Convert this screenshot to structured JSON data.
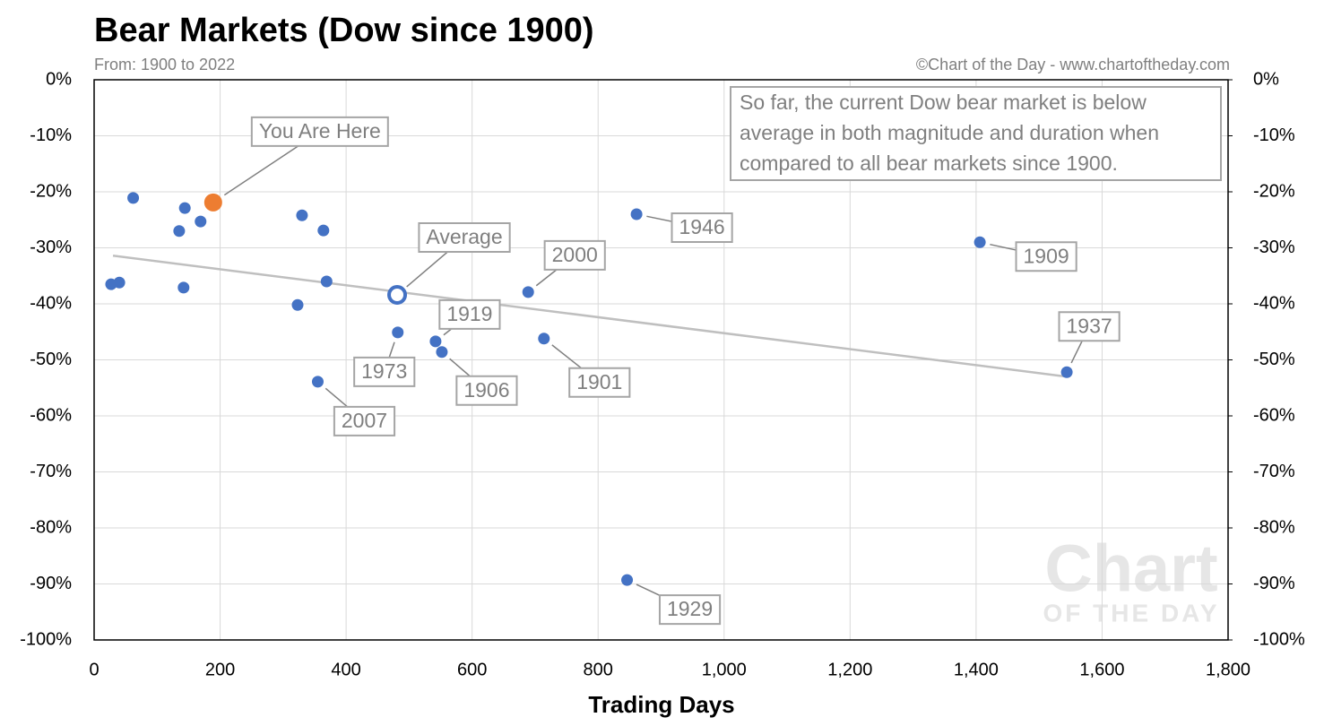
{
  "chart_data": {
    "type": "scatter",
    "title": "Bear Markets (Dow since 1900)",
    "subtitle": "From: 1900 to 2022",
    "source": "©Chart of the Day - www.chartoftheday.com",
    "note": [
      "So far, the current Dow bear market is below",
      "average in both magnitude and duration when",
      "compared to all bear markets since 1900."
    ],
    "watermark": [
      "Chart",
      "OF THE DAY"
    ],
    "x_label": "Trading Days",
    "xlim": [
      0,
      1800
    ],
    "xticks": [
      0,
      200,
      400,
      600,
      800,
      {
        "value": 1000,
        "label": "1,000"
      },
      {
        "value": 1200,
        "label": "1,200"
      },
      {
        "value": 1400,
        "label": "1,400"
      },
      {
        "value": 1600,
        "label": "1,600"
      },
      {
        "value": 1800,
        "label": "1,800"
      }
    ],
    "ylim": [
      -100,
      0
    ],
    "yticks": [
      {
        "value": 0,
        "label": "0%"
      },
      {
        "value": -10,
        "label": "-10%"
      },
      {
        "value": -20,
        "label": "-20%"
      },
      {
        "value": -30,
        "label": "-30%"
      },
      {
        "value": -40,
        "label": "-40%"
      },
      {
        "value": -50,
        "label": "-50%"
      },
      {
        "value": -60,
        "label": "-60%"
      },
      {
        "value": -70,
        "label": "-70%"
      },
      {
        "value": -80,
        "label": "-80%"
      },
      {
        "value": -90,
        "label": "-90%"
      },
      {
        "value": -100,
        "label": "-100%"
      }
    ],
    "y2lim": [
      -100,
      0
    ],
    "y2ticks": [
      {
        "value": 0,
        "label": "0%"
      },
      {
        "value": -10,
        "label": "-10%"
      },
      {
        "value": -20,
        "label": "-20%"
      },
      {
        "value": -30,
        "label": "-30%"
      },
      {
        "value": -40,
        "label": "-40%"
      },
      {
        "value": -50,
        "label": "-50%"
      },
      {
        "value": -60,
        "label": "-60%"
      },
      {
        "value": -70,
        "label": "-70%"
      },
      {
        "value": -80,
        "label": "-80%"
      },
      {
        "value": -90,
        "label": "-90%"
      },
      {
        "value": -100,
        "label": "-100%"
      }
    ],
    "grid": true,
    "trendline": {
      "x": [
        30,
        1544
      ],
      "y": [
        -31.4,
        -53.0
      ],
      "color": "#bfbfbf"
    },
    "series": [
      {
        "color": "#4472c4",
        "marker": "filled",
        "x": [
          27,
          40,
          62,
          144,
          135,
          142,
          169,
          330,
          364,
          369,
          323,
          355,
          482,
          542,
          552,
          689,
          714,
          861,
          846,
          1406,
          1544
        ],
        "values": [
          -36.5,
          -36.2,
          -21.1,
          -22.9,
          -27.0,
          -37.1,
          -25.3,
          -24.2,
          -26.9,
          -36.0,
          -40.2,
          -53.9,
          -45.1,
          -46.7,
          -48.6,
          -37.9,
          -46.2,
          -24.0,
          -89.3,
          -29.0,
          -52.2
        ],
        "labels": [
          null,
          null,
          null,
          null,
          null,
          null,
          null,
          null,
          null,
          null,
          null,
          "2007",
          "1973",
          "1919",
          "1906",
          "2000",
          "1901",
          "1946",
          "1929",
          "1909",
          "1937"
        ]
      },
      {
        "color": "#ed7d31",
        "marker": "large",
        "x": [
          189
        ],
        "values": [
          -21.9
        ],
        "labels": [
          "You Are Here"
        ]
      },
      {
        "color": "#4472c4",
        "marker": "hollow",
        "x": [
          481
        ],
        "values": [
          -38.4
        ],
        "labels": [
          "Average"
        ]
      }
    ]
  }
}
